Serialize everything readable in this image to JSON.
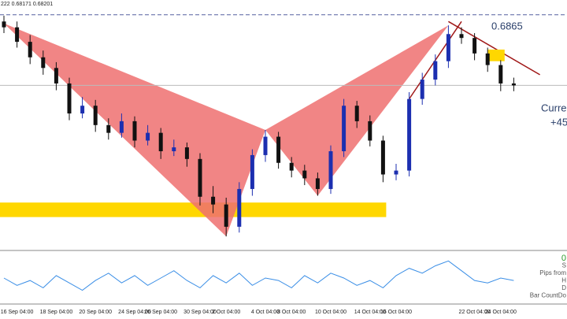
{
  "chart_data": {
    "type": "candlestick",
    "title": "222 0.68171 0.68201",
    "categories": [
      null,
      "16 Sep 04:00",
      null,
      null,
      "18 Sep 04:00",
      null,
      null,
      "20 Sep 04:00",
      null,
      null,
      "24 Sep 04:00",
      null,
      "26 Sep 04:00",
      null,
      null,
      "30 Sep 04:00",
      null,
      "2 Oct 04:00",
      null,
      null,
      "4 Oct 04:00",
      null,
      "8 Oct 04:00",
      null,
      null,
      "10 Oct 04:00",
      null,
      null,
      "14 Oct 04:00",
      null,
      "16 Oct 04:00",
      null,
      null,
      null,
      null,
      null,
      "22 Oct 04:00",
      null,
      "24 Oct 04:00",
      null
    ],
    "open": [
      0.687,
      0.6864,
      0.6849,
      0.6833,
      0.6822,
      0.6806,
      0.6775,
      0.6783,
      0.6763,
      0.6755,
      0.6767,
      0.6747,
      0.6755,
      0.6736,
      0.674,
      0.6728,
      0.6689,
      0.6681,
      0.6658,
      0.6697,
      0.6732,
      0.6751,
      0.6724,
      0.6716,
      0.6708,
      0.6697,
      0.6736,
      0.6783,
      0.6767,
      0.6747,
      0.6712,
      0.6716,
      0.679,
      0.681,
      0.6829,
      0.6857,
      0.6853,
      0.6837,
      0.6825,
      0.6806
    ],
    "high": [
      0.6876,
      0.687,
      0.6856,
      0.684,
      0.6828,
      0.6812,
      0.6792,
      0.6789,
      0.677,
      0.6775,
      0.6772,
      0.6763,
      0.676,
      0.6748,
      0.6745,
      0.6734,
      0.67,
      0.6688,
      0.6704,
      0.6738,
      0.6758,
      0.6756,
      0.673,
      0.6722,
      0.6714,
      0.6742,
      0.679,
      0.6788,
      0.6773,
      0.6752,
      0.6723,
      0.6797,
      0.6817,
      0.6836,
      0.6866,
      0.6864,
      0.6858,
      0.6843,
      0.683,
      0.6812
    ],
    "low": [
      0.6858,
      0.6843,
      0.6826,
      0.6815,
      0.6799,
      0.6768,
      0.677,
      0.6756,
      0.6748,
      0.675,
      0.674,
      0.6742,
      0.6728,
      0.6731,
      0.672,
      0.668,
      0.6672,
      0.6648,
      0.6652,
      0.669,
      0.6725,
      0.6718,
      0.6709,
      0.6701,
      0.669,
      0.6692,
      0.673,
      0.676,
      0.6741,
      0.6704,
      0.6706,
      0.671,
      0.6784,
      0.6804,
      0.6822,
      0.6847,
      0.683,
      0.6818,
      0.6798,
      0.6798
    ],
    "close": [
      0.6864,
      0.6849,
      0.6833,
      0.6822,
      0.6806,
      0.6775,
      0.6783,
      0.6763,
      0.6755,
      0.6767,
      0.6747,
      0.6755,
      0.6736,
      0.674,
      0.6728,
      0.6689,
      0.6681,
      0.6658,
      0.6697,
      0.6732,
      0.6751,
      0.6724,
      0.6716,
      0.6708,
      0.6697,
      0.6736,
      0.6783,
      0.6767,
      0.6747,
      0.6712,
      0.6716,
      0.679,
      0.681,
      0.6829,
      0.6857,
      0.6853,
      0.6837,
      0.6825,
      0.6806,
      0.6804
    ],
    "up_color": "#1c2fb0",
    "down_color": "#111111",
    "ylim": [
      0.664,
      0.688
    ],
    "pattern": {
      "x": [
        0,
        17,
        20,
        24,
        34
      ],
      "y": [
        0.6868,
        0.6648,
        0.6758,
        0.669,
        0.6866
      ],
      "color": "#ee7070"
    },
    "zone": {
      "from": 0.6668,
      "to": 0.6683,
      "end": 29,
      "color": "#ffd700"
    },
    "box": {
      "from": 0.6829,
      "to": 0.6841,
      "start": 37,
      "end": 38.3,
      "color": "#ffd700"
    },
    "trendline": {
      "x": [
        34,
        41
      ],
      "y": [
        0.687,
        0.6815
      ],
      "color": "#a01818"
    },
    "support_line": {
      "x": [
        31,
        35
      ],
      "y": [
        0.679,
        0.687
      ],
      "color": "#a01818"
    },
    "price_line": 0.6804,
    "top_line": 0.6877,
    "level_label": "0.6865",
    "current_labels": [
      "Curre",
      "+45"
    ],
    "indicator": {
      "values": [
        50,
        35,
        45,
        30,
        55,
        40,
        25,
        45,
        60,
        40,
        55,
        35,
        50,
        65,
        45,
        30,
        55,
        40,
        60,
        35,
        50,
        45,
        30,
        55,
        40,
        60,
        50,
        35,
        45,
        30,
        55,
        70,
        60,
        75,
        85,
        65,
        45,
        40,
        50,
        45
      ],
      "ylim": [
        0,
        100
      ],
      "color": "#3a8ee6"
    },
    "side_labels": [
      "0",
      "S",
      "Pips from",
      "H",
      "D",
      "Bar CountDo"
    ]
  }
}
